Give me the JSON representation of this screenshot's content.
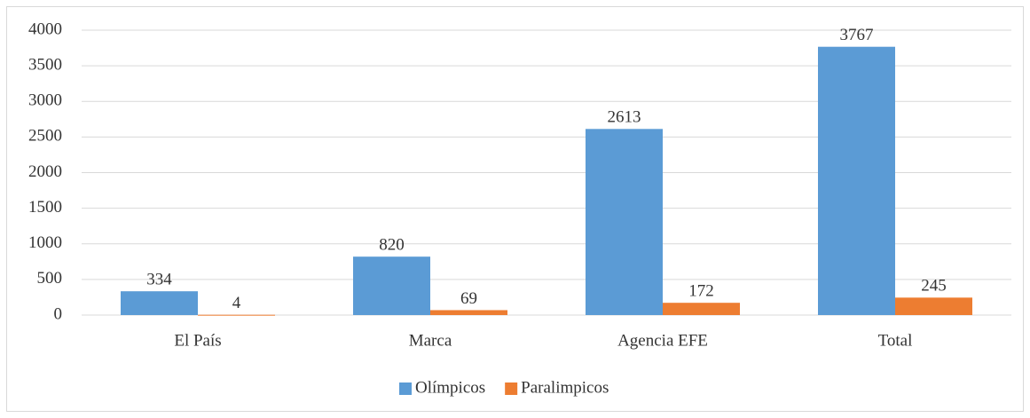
{
  "chart_data": {
    "type": "bar",
    "categories": [
      "El País",
      "Marca",
      "Agencia EFE",
      "Total"
    ],
    "series": [
      {
        "name": "Olímpicos",
        "color": "#5b9bd5",
        "values": [
          334,
          820,
          2613,
          3767
        ]
      },
      {
        "name": "Paralimpicos",
        "color": "#ed7d31",
        "values": [
          4,
          69,
          172,
          245
        ]
      }
    ],
    "ylim": [
      0,
      4000
    ],
    "yticks": [
      0,
      500,
      1000,
      1500,
      2000,
      2500,
      3000,
      3500,
      4000
    ],
    "grid": true,
    "legend": "bottom",
    "data_labels": true
  }
}
